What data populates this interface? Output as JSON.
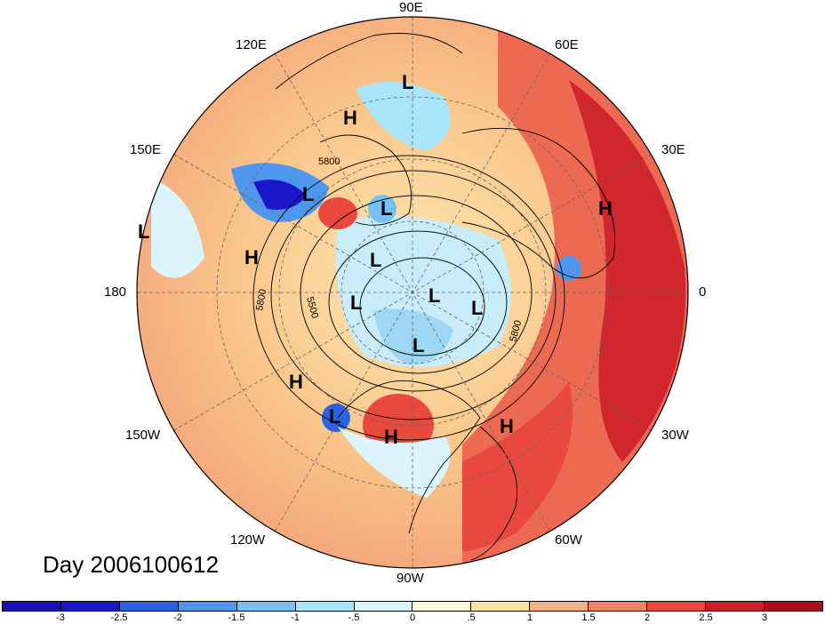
{
  "title": "Day 2006100612",
  "longitude_labels": {
    "e90": "90E",
    "e60": "60E",
    "e120": "120E",
    "e30": "30E",
    "e150": "150E",
    "zero": "0",
    "w180": "180",
    "w30": "30W",
    "w150": "150W",
    "w60": "60W",
    "w120": "120W",
    "w90": "90W"
  },
  "contour_labels": [
    "5800",
    "5500",
    "5800",
    "5800"
  ],
  "pressure_centers": [
    {
      "text": "L"
    },
    {
      "text": "H"
    },
    {
      "text": "L"
    },
    {
      "text": "L"
    },
    {
      "text": "L"
    },
    {
      "text": "H"
    },
    {
      "text": "L"
    },
    {
      "text": "H"
    },
    {
      "text": "L"
    },
    {
      "text": "L"
    },
    {
      "text": "L"
    },
    {
      "text": "L"
    },
    {
      "text": "L"
    },
    {
      "text": "H"
    },
    {
      "text": "L"
    },
    {
      "text": "H"
    },
    {
      "text": "H"
    }
  ],
  "colorbar": {
    "colors": [
      "#1b17c9",
      "#2a62e4",
      "#4f96ef",
      "#78bff5",
      "#a9e6fb",
      "#dcf5fc",
      "#fff7d6",
      "#fde3a0",
      "#f6b07f",
      "#f2825f",
      "#e8483d",
      "#ca1e2a",
      "#a8101c"
    ],
    "ticks": [
      "-3",
      "-2.5",
      "-2",
      "-1.5",
      "-1",
      "-.5",
      "0",
      ".5",
      "1",
      "1.5",
      "2",
      "2.5",
      "3"
    ]
  }
}
